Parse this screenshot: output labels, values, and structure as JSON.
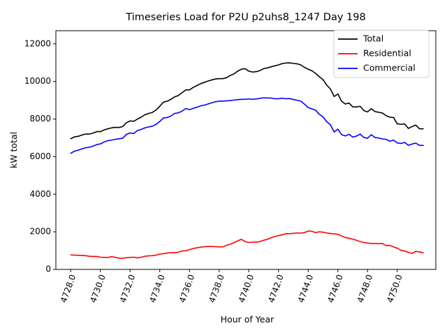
{
  "chart_data": {
    "type": "line",
    "title": "Timeseries Load for P2U p2uhs8_1247  Day 198",
    "xlabel": "Hour of Year",
    "ylabel": "kW total",
    "xlim": [
      4727.0,
      4752.6
    ],
    "ylim": [
      0,
      12700
    ],
    "x_ticks": [
      4728,
      4730,
      4732,
      4734,
      4736,
      4738,
      4740,
      4742,
      4744,
      4746,
      4748,
      4750
    ],
    "x_tick_labels": [
      "4728.0",
      "4730.0",
      "4732.0",
      "4734.0",
      "4736.0",
      "4738.0",
      "4740.0",
      "4742.0",
      "4744.0",
      "4746.0",
      "4748.0",
      "4750.0"
    ],
    "y_ticks": [
      0,
      2000,
      4000,
      6000,
      8000,
      10000,
      12000
    ],
    "y_tick_labels": [
      "0",
      "2000",
      "4000",
      "6000",
      "8000",
      "10000",
      "12000"
    ],
    "grid": false,
    "legend_position": "top-right",
    "x": [
      4728.0,
      4728.25,
      4728.5,
      4728.75,
      4729.0,
      4729.25,
      4729.5,
      4729.75,
      4730.0,
      4730.25,
      4730.5,
      4730.75,
      4731.0,
      4731.25,
      4731.5,
      4731.75,
      4732.0,
      4732.25,
      4732.5,
      4732.75,
      4733.0,
      4733.25,
      4733.5,
      4733.75,
      4734.0,
      4734.25,
      4734.5,
      4734.75,
      4735.0,
      4735.25,
      4735.5,
      4735.75,
      4736.0,
      4736.25,
      4736.5,
      4736.75,
      4737.0,
      4737.25,
      4737.5,
      4737.75,
      4738.0,
      4738.25,
      4738.5,
      4738.75,
      4739.0,
      4739.25,
      4739.5,
      4739.75,
      4740.0,
      4740.25,
      4740.5,
      4740.75,
      4741.0,
      4741.25,
      4741.5,
      4741.75,
      4742.0,
      4742.25,
      4742.5,
      4742.75,
      4743.0,
      4743.25,
      4743.5,
      4743.75,
      4744.0,
      4744.25,
      4744.5,
      4744.75,
      4745.0,
      4745.25,
      4745.5,
      4745.75,
      4746.0,
      4746.25,
      4746.5,
      4746.75,
      4747.0,
      4747.25,
      4747.5,
      4747.75,
      4748.0,
      4748.25,
      4748.5,
      4748.75,
      4749.0,
      4749.25,
      4749.5,
      4749.75,
      4750.0,
      4750.25,
      4750.5,
      4750.75,
      4751.0,
      4751.25,
      4751.5,
      4751.75
    ],
    "series": [
      {
        "name": "Total",
        "color": "#000000",
        "values": [
          6950,
          7050,
          7080,
          7150,
          7200,
          7200,
          7250,
          7330,
          7330,
          7420,
          7480,
          7530,
          7560,
          7550,
          7600,
          7800,
          7900,
          7880,
          8000,
          8100,
          8230,
          8300,
          8350,
          8480,
          8680,
          8900,
          8950,
          9050,
          9180,
          9250,
          9400,
          9550,
          9550,
          9680,
          9780,
          9880,
          9950,
          10020,
          10080,
          10130,
          10150,
          10150,
          10200,
          10320,
          10400,
          10550,
          10650,
          10680,
          10550,
          10500,
          10520,
          10580,
          10680,
          10720,
          10780,
          10830,
          10880,
          10950,
          10980,
          10990,
          10960,
          10940,
          10880,
          10750,
          10650,
          10570,
          10430,
          10250,
          10100,
          9800,
          9600,
          9200,
          9330,
          8950,
          8800,
          8850,
          8650,
          8640,
          8680,
          8450,
          8380,
          8550,
          8400,
          8360,
          8320,
          8180,
          8100,
          8080,
          7750,
          7720,
          7740,
          7500,
          7600,
          7680,
          7480,
          7480
        ]
      },
      {
        "name": "Residential",
        "color": "#ff0000",
        "values": [
          770,
          760,
          750,
          740,
          730,
          700,
          690,
          690,
          650,
          640,
          630,
          680,
          640,
          600,
          590,
          620,
          640,
          650,
          610,
          650,
          700,
          720,
          730,
          760,
          810,
          840,
          870,
          890,
          880,
          920,
          980,
          990,
          1050,
          1110,
          1150,
          1180,
          1210,
          1220,
          1220,
          1210,
          1200,
          1200,
          1280,
          1340,
          1420,
          1520,
          1600,
          1480,
          1430,
          1450,
          1450,
          1480,
          1550,
          1600,
          1680,
          1750,
          1800,
          1840,
          1900,
          1900,
          1920,
          1940,
          1930,
          1960,
          2040,
          2030,
          1960,
          2000,
          1980,
          1940,
          1910,
          1890,
          1870,
          1780,
          1700,
          1660,
          1610,
          1550,
          1480,
          1430,
          1400,
          1380,
          1380,
          1370,
          1380,
          1260,
          1280,
          1200,
          1130,
          1020,
          980,
          900,
          850,
          960,
          930,
          880
        ]
      },
      {
        "name": "Commercial",
        "color": "#0000ff",
        "values": [
          6180,
          6290,
          6340,
          6410,
          6470,
          6500,
          6560,
          6640,
          6680,
          6780,
          6850,
          6880,
          6920,
          6950,
          6980,
          7180,
          7260,
          7230,
          7390,
          7450,
          7530,
          7580,
          7620,
          7720,
          7870,
          8060,
          8080,
          8160,
          8300,
          8330,
          8420,
          8560,
          8500,
          8570,
          8630,
          8700,
          8740,
          8800,
          8860,
          8920,
          8950,
          8950,
          8970,
          8980,
          9010,
          9030,
          9050,
          9050,
          9070,
          9050,
          9070,
          9100,
          9130,
          9120,
          9120,
          9080,
          9080,
          9110,
          9080,
          9090,
          9040,
          9000,
          8950,
          8790,
          8610,
          8540,
          8470,
          8250,
          8120,
          7860,
          7690,
          7310,
          7460,
          7170,
          7100,
          7190,
          7040,
          7090,
          7200,
          7020,
          6980,
          7170,
          7020,
          6990,
          6940,
          6920,
          6820,
          6880,
          6730,
          6700,
          6760,
          6600,
          6670,
          6720,
          6600,
          6600
        ]
      }
    ]
  }
}
